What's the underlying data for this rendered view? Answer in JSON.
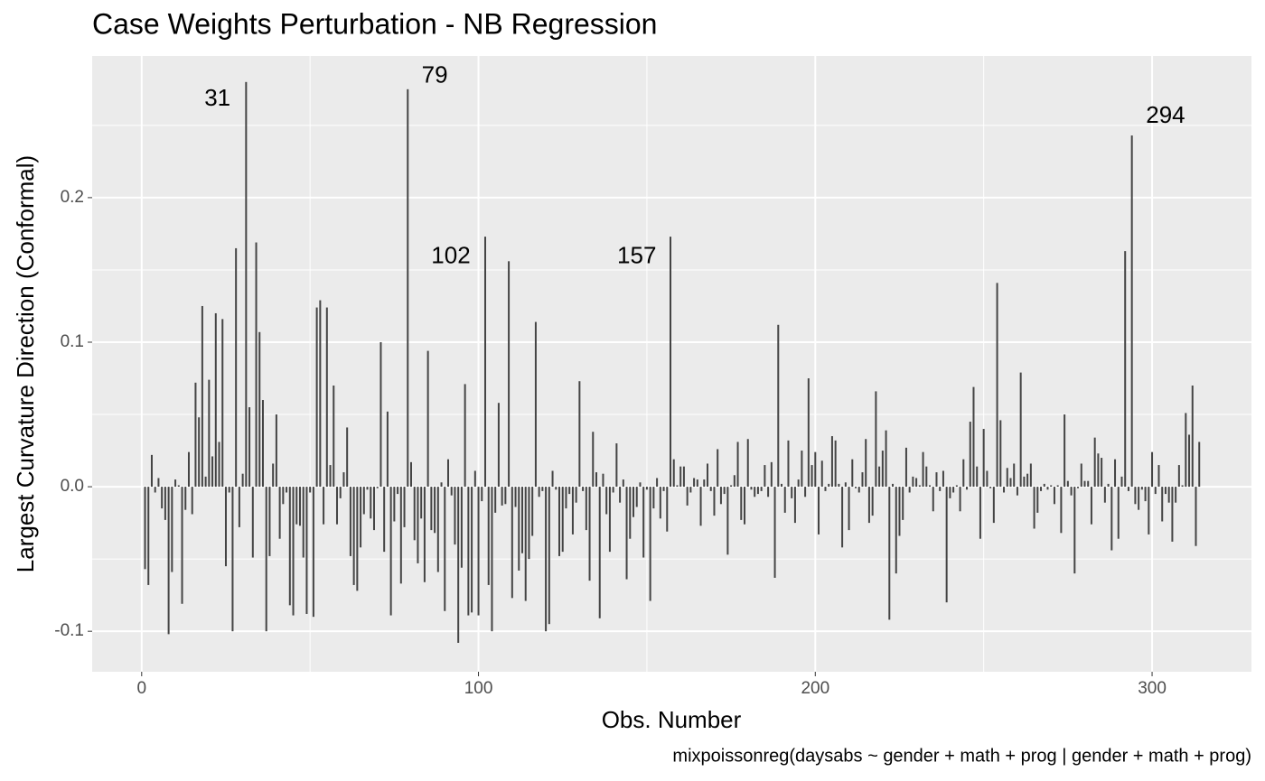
{
  "chart_data": {
    "type": "bar",
    "title": "Case Weights Perturbation - NB Regression",
    "x_label": "Obs. Number",
    "y_label": "Largest Curvature Direction (Conformal)",
    "caption": "mixpoissonreg(daysabs ~ gender + math + prog | gender + math + prog)",
    "color": "#444444",
    "grid": true,
    "xlim": [
      -14.7,
      329.5
    ],
    "ylim": [
      -0.128,
      0.298
    ],
    "xticks": [
      0,
      100,
      200,
      300
    ],
    "yticks": [
      -0.1,
      {
        "value": 0,
        "label": "0.0"
      },
      0.1,
      0.2
    ],
    "xminor": [
      50,
      150,
      250
    ],
    "yminor": [
      -0.05,
      0.05,
      0.15,
      0.25
    ],
    "annotations": [
      {
        "text": "31",
        "x": 22.5,
        "y": 0.268
      },
      {
        "text": "79",
        "x": 87,
        "y": 0.284
      },
      {
        "text": "102",
        "x": 91.8,
        "y": 0.159
      },
      {
        "text": "157",
        "x": 147,
        "y": 0.159
      },
      {
        "text": "294",
        "x": 304,
        "y": 0.256
      }
    ],
    "x": [
      1,
      2,
      3,
      4,
      5,
      6,
      7,
      8,
      9,
      10,
      11,
      12,
      13,
      14,
      15,
      16,
      17,
      18,
      19,
      20,
      21,
      22,
      23,
      24,
      25,
      26,
      27,
      28,
      29,
      30,
      31,
      32,
      33,
      34,
      35,
      36,
      37,
      38,
      39,
      40,
      41,
      42,
      43,
      44,
      45,
      46,
      47,
      48,
      49,
      50,
      51,
      52,
      53,
      54,
      55,
      56,
      57,
      58,
      59,
      60,
      61,
      62,
      63,
      64,
      65,
      66,
      67,
      68,
      69,
      70,
      71,
      72,
      73,
      74,
      75,
      76,
      77,
      78,
      79,
      80,
      81,
      82,
      83,
      84,
      85,
      86,
      87,
      88,
      89,
      90,
      91,
      92,
      93,
      94,
      95,
      96,
      97,
      98,
      99,
      100,
      101,
      102,
      103,
      104,
      105,
      106,
      107,
      108,
      109,
      110,
      111,
      112,
      113,
      114,
      115,
      116,
      117,
      118,
      119,
      120,
      121,
      122,
      123,
      124,
      125,
      126,
      127,
      128,
      129,
      130,
      131,
      132,
      133,
      134,
      135,
      136,
      137,
      138,
      139,
      140,
      141,
      142,
      143,
      144,
      145,
      146,
      147,
      148,
      149,
      150,
      151,
      152,
      153,
      154,
      155,
      156,
      157,
      158,
      159,
      160,
      161,
      162,
      163,
      164,
      165,
      166,
      167,
      168,
      169,
      170,
      171,
      172,
      173,
      174,
      175,
      176,
      177,
      178,
      179,
      180,
      181,
      182,
      183,
      184,
      185,
      186,
      187,
      188,
      189,
      190,
      191,
      192,
      193,
      194,
      195,
      196,
      197,
      198,
      199,
      200,
      201,
      202,
      203,
      204,
      205,
      206,
      207,
      208,
      209,
      210,
      211,
      212,
      213,
      214,
      215,
      216,
      217,
      218,
      219,
      220,
      221,
      222,
      223,
      224,
      225,
      226,
      227,
      228,
      229,
      230,
      231,
      232,
      233,
      234,
      235,
      236,
      237,
      238,
      239,
      240,
      241,
      242,
      243,
      244,
      245,
      246,
      247,
      248,
      249,
      250,
      251,
      252,
      253,
      254,
      255,
      256,
      257,
      258,
      259,
      260,
      261,
      262,
      263,
      264,
      265,
      266,
      267,
      268,
      269,
      270,
      271,
      272,
      273,
      274,
      275,
      276,
      277,
      278,
      279,
      280,
      281,
      282,
      283,
      284,
      285,
      286,
      287,
      288,
      289,
      290,
      291,
      292,
      293,
      294,
      295,
      296,
      297,
      298,
      299,
      300,
      301,
      302,
      303,
      304,
      305,
      306,
      307,
      308,
      309,
      310,
      311,
      312,
      313,
      314
    ],
    "values": [
      -0.057,
      -0.068,
      0.022,
      -0.004,
      0.006,
      -0.015,
      -0.023,
      -0.102,
      -0.059,
      0.005,
      0.001,
      -0.081,
      -0.016,
      0.024,
      -0.019,
      0.072,
      0.048,
      0.125,
      0.007,
      0.074,
      0.021,
      0.12,
      0.031,
      0.116,
      -0.055,
      -0.004,
      -0.1,
      0.165,
      -0.028,
      0.009,
      0.28,
      0.055,
      -0.049,
      0.169,
      0.107,
      0.06,
      -0.1,
      -0.048,
      0.016,
      0.05,
      -0.036,
      -0.012,
      -0.004,
      -0.082,
      -0.089,
      -0.026,
      -0.027,
      -0.049,
      -0.088,
      -0.004,
      -0.09,
      0.124,
      0.129,
      -0.026,
      0.124,
      0.015,
      0.07,
      -0.026,
      -0.008,
      0.01,
      0.041,
      -0.048,
      -0.068,
      -0.072,
      -0.042,
      -0.019,
      -0.002,
      -0.022,
      -0.03,
      -0.001,
      0.1,
      -0.045,
      0.052,
      -0.089,
      -0.024,
      -0.005,
      -0.067,
      -0.028,
      0.275,
      0.017,
      -0.037,
      -0.053,
      -0.022,
      -0.066,
      0.094,
      -0.03,
      -0.032,
      -0.059,
      0.003,
      -0.086,
      0.019,
      -0.006,
      -0.04,
      -0.108,
      -0.056,
      0.071,
      -0.089,
      -0.087,
      0.011,
      -0.089,
      -0.01,
      0.173,
      -0.068,
      -0.1,
      -0.018,
      0.058,
      -0.013,
      -0.012,
      0.156,
      -0.077,
      -0.014,
      -0.058,
      -0.046,
      -0.079,
      -0.05,
      -0.034,
      0.114,
      -0.007,
      -0.003,
      -0.1,
      -0.095,
      0.011,
      -0.002,
      -0.048,
      -0.045,
      -0.015,
      -0.005,
      -0.033,
      -0.011,
      0.073,
      -0.003,
      -0.03,
      -0.065,
      0.038,
      0.01,
      -0.091,
      0.009,
      -0.019,
      -0.045,
      -0.004,
      0.03,
      -0.011,
      0.005,
      -0.064,
      -0.036,
      -0.021,
      -0.014,
      0.003,
      -0.049,
      -0.002,
      -0.079,
      -0.015,
      0.006,
      -0.022,
      -0.003,
      -0.031,
      0.173,
      0.019,
      0.001,
      0.014,
      0.014,
      -0.013,
      -0.004,
      0.006,
      0.005,
      -0.027,
      0.005,
      0.016,
      -0.003,
      -0.02,
      0.026,
      -0.012,
      -0.005,
      -0.047,
      0.001,
      0.008,
      0.031,
      -0.023,
      -0.026,
      0.033,
      -0.002,
      -0.007,
      -0.005,
      -0.003,
      0.015,
      -0.007,
      0.017,
      -0.063,
      0.112,
      0.002,
      -0.018,
      0.032,
      -0.008,
      -0.025,
      0.005,
      0.025,
      -0.007,
      0.075,
      0.015,
      0.024,
      -0.033,
      0.018,
      -0.003,
      0.002,
      0.035,
      0.032,
      0.002,
      -0.042,
      0.003,
      -0.03,
      0.019,
      -0.001,
      -0.004,
      0.01,
      0.033,
      -0.025,
      -0.02,
      0.066,
      0.014,
      0.025,
      0.039,
      -0.092,
      0.002,
      -0.06,
      -0.034,
      -0.023,
      0.027,
      -0.004,
      0.007,
      0.006,
      0.001,
      0.024,
      0.014,
      0.001,
      -0.017,
      0.01,
      -0.003,
      0.011,
      -0.08,
      -0.008,
      -0.004,
      0.001,
      -0.017,
      0.019,
      -0.002,
      0.045,
      0.069,
      0.014,
      -0.036,
      0.04,
      0.011,
      -0.001,
      -0.025,
      0.141,
      0.046,
      -0.004,
      0.013,
      0.006,
      0.016,
      -0.006,
      0.079,
      0.007,
      0.009,
      0.016,
      -0.029,
      -0.018,
      -0.003,
      0.002,
      -0.002,
      0.001,
      -0.012,
      0.001,
      -0.032,
      0.05,
      0.004,
      -0.006,
      -0.06,
      -0.001,
      0.016,
      0.004,
      0.004,
      -0.026,
      0.034,
      0.023,
      0.02,
      -0.011,
      0.002,
      -0.044,
      0.019,
      -0.036,
      0.007,
      0.163,
      -0.003,
      0.243,
      -0.012,
      -0.016,
      -0.002,
      -0.01,
      -0.033,
      0.024,
      -0.005,
      0.015,
      -0.024,
      -0.005,
      -0.011,
      -0.038,
      -0.011,
      0.015,
      0.001,
      0.051,
      0.036,
      0.07,
      -0.041,
      0.031
    ]
  }
}
